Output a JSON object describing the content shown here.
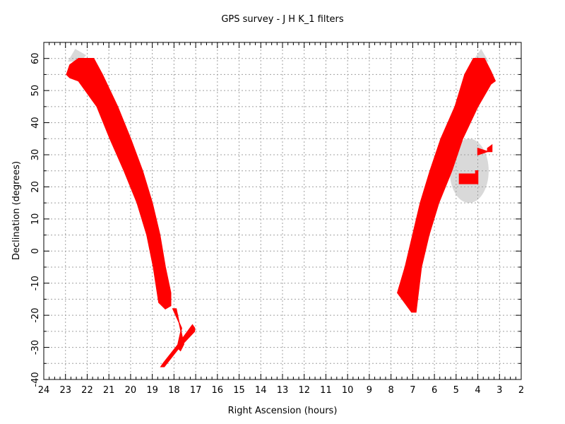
{
  "chart_data": {
    "type": "sky-coverage",
    "title": "GPS survey  - J H K_1  filters",
    "xlabel": "Right Ascension (hours)",
    "ylabel": "Declination (degrees)",
    "xlim": [
      24,
      2
    ],
    "ylim": [
      -40,
      65
    ],
    "x_ticks": [
      "24",
      "23",
      "22",
      "21",
      "20",
      "19",
      "18",
      "17",
      "16",
      "15",
      "14",
      "13",
      "12",
      "11",
      "10",
      "9",
      "8",
      "7",
      "6",
      "5",
      "4",
      "3",
      "2"
    ],
    "y_ticks": [
      "60",
      "50",
      "40",
      "30",
      "20",
      "10",
      "0",
      "-10",
      "-20",
      "-30",
      "-40"
    ],
    "grid": true,
    "colors": {
      "survey": "#ff0000",
      "region": "#d9d9d9",
      "grid": "#a0a0a0"
    },
    "survey_areas": [
      {
        "name": "north-galactic-plane-band",
        "polygon": [
          [
            22.95,
            55
          ],
          [
            22.8,
            58
          ],
          [
            22.4,
            60
          ],
          [
            21.7,
            60
          ],
          [
            21.3,
            55
          ],
          [
            20.6,
            45
          ],
          [
            20.0,
            35
          ],
          [
            19.45,
            25
          ],
          [
            19.0,
            15
          ],
          [
            18.65,
            5
          ],
          [
            18.4,
            -5
          ],
          [
            18.15,
            -13
          ],
          [
            18.15,
            -17
          ],
          [
            18.4,
            -18
          ],
          [
            18.7,
            -16
          ],
          [
            18.95,
            -5
          ],
          [
            19.25,
            5
          ],
          [
            19.7,
            15
          ],
          [
            20.3,
            25
          ],
          [
            20.95,
            35
          ],
          [
            21.55,
            45
          ],
          [
            22.4,
            53
          ],
          [
            22.8,
            54
          ]
        ]
      },
      {
        "name": "bulge-strip-1",
        "polygon": [
          [
            18.05,
            -18
          ],
          [
            17.9,
            -18
          ],
          [
            17.55,
            -29
          ],
          [
            17.7,
            -31
          ],
          [
            17.85,
            -30
          ],
          [
            17.65,
            -24
          ]
        ]
      },
      {
        "name": "bulge-strip-2",
        "polygon": [
          [
            17.05,
            -24
          ],
          [
            17.15,
            -23
          ],
          [
            17.8,
            -29
          ],
          [
            18.5,
            -35
          ],
          [
            18.6,
            -36
          ],
          [
            18.45,
            -36
          ],
          [
            17.75,
            -30
          ],
          [
            17.05,
            -25
          ]
        ]
      },
      {
        "name": "anticentre-band",
        "polygon": [
          [
            7.7,
            -13
          ],
          [
            7.05,
            -19
          ],
          [
            6.85,
            -19
          ],
          [
            6.6,
            -5
          ],
          [
            6.25,
            5
          ],
          [
            5.8,
            15
          ],
          [
            5.2,
            25
          ],
          [
            4.7,
            35
          ],
          [
            4.0,
            45
          ],
          [
            3.4,
            52
          ],
          [
            3.2,
            53
          ],
          [
            3.4,
            56
          ],
          [
            3.7,
            60
          ],
          [
            4.2,
            60
          ],
          [
            4.6,
            55
          ],
          [
            5.05,
            45
          ],
          [
            5.7,
            35
          ],
          [
            6.2,
            25
          ],
          [
            6.65,
            15
          ],
          [
            7.0,
            5
          ],
          [
            7.35,
            -5
          ]
        ]
      },
      {
        "name": "taurus-block-1",
        "polygon": [
          [
            4.85,
            24
          ],
          [
            4.1,
            24
          ],
          [
            4.1,
            25
          ],
          [
            4.0,
            25
          ],
          [
            4.0,
            21
          ],
          [
            4.85,
            21
          ]
        ]
      },
      {
        "name": "taurus-block-2",
        "polygon": [
          [
            4.0,
            30
          ],
          [
            3.55,
            31
          ],
          [
            3.35,
            31
          ],
          [
            3.35,
            33
          ],
          [
            3.55,
            32
          ],
          [
            3.55,
            31
          ],
          [
            4.0,
            32
          ]
        ]
      }
    ],
    "regions": [
      {
        "name": "taurus-region",
        "shape": "ellipse",
        "center": [
          4.4,
          25
        ],
        "radius_ra": 0.9,
        "radius_dec": 10
      },
      {
        "name": "cassiopeia-cap",
        "shape": "polygon",
        "polygon": [
          [
            22.9,
            59
          ],
          [
            22.55,
            63
          ],
          [
            22.05,
            61
          ],
          [
            22.3,
            59
          ]
        ]
      },
      {
        "name": "perseus-cap",
        "shape": "polygon",
        "polygon": [
          [
            4.25,
            59
          ],
          [
            3.85,
            63
          ],
          [
            3.5,
            59
          ]
        ]
      }
    ]
  }
}
